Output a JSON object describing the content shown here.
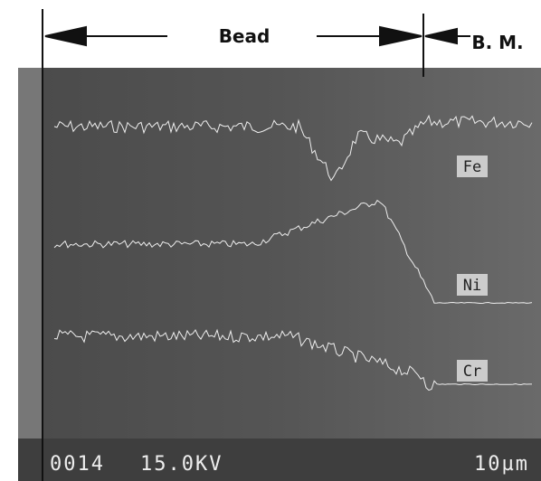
{
  "header": {
    "bead": "Bead",
    "base_metal": "B. M."
  },
  "traces": [
    {
      "label": "Fe"
    },
    {
      "label": "Ni"
    },
    {
      "label": "Cr"
    }
  ],
  "footer": {
    "frame": "0014",
    "voltage": "15.0KV",
    "scale": "10µm"
  }
}
